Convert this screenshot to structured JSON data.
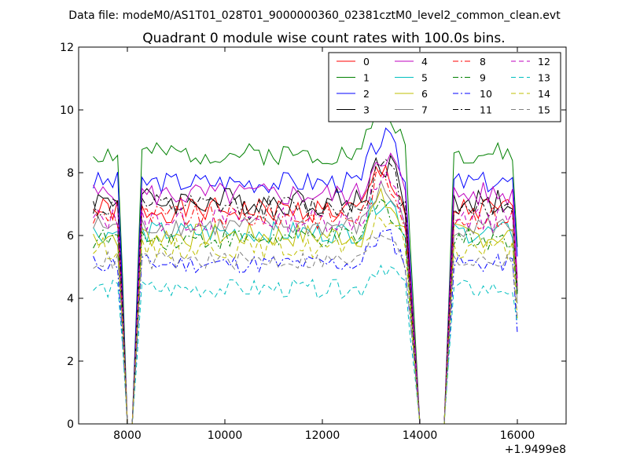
{
  "header": {
    "data_file": "Data file: modeM0/AS1T01_028T01_9000000360_02381cztM0_level2_common_clean.evt"
  },
  "chart_data": {
    "type": "line",
    "title": "Quadrant 0 module wise count rates with 100.0s bins.",
    "xlabel": "",
    "ylabel": "",
    "x_offset_label": "+1.9499e8",
    "xlim": [
      7000,
      17000
    ],
    "ylim": [
      0,
      12
    ],
    "xticks": [
      8000,
      10000,
      12000,
      14000,
      16000
    ],
    "yticks": [
      0,
      2,
      4,
      6,
      8,
      10,
      12
    ],
    "grid": false,
    "legend_position": "top-right",
    "legend_columns": 4,
    "series": [
      {
        "name": "0",
        "color": "#ff0000",
        "dash": "solid",
        "base": 6.8,
        "amp": 0.4,
        "seed": 1
      },
      {
        "name": "1",
        "color": "#008000",
        "dash": "solid",
        "base": 8.6,
        "amp": 0.35,
        "seed": 2
      },
      {
        "name": "2",
        "color": "#0000ff",
        "dash": "solid",
        "base": 7.7,
        "amp": 0.35,
        "seed": 3
      },
      {
        "name": "3",
        "color": "#000000",
        "dash": "solid",
        "base": 7.1,
        "amp": 0.45,
        "seed": 4
      },
      {
        "name": "4",
        "color": "#bf00bf",
        "dash": "solid",
        "base": 7.3,
        "amp": 0.4,
        "seed": 5
      },
      {
        "name": "5",
        "color": "#00bfbf",
        "dash": "solid",
        "base": 6.1,
        "amp": 0.35,
        "seed": 6
      },
      {
        "name": "6",
        "color": "#bfbf00",
        "dash": "solid",
        "base": 6.0,
        "amp": 0.4,
        "seed": 7
      },
      {
        "name": "7",
        "color": "#808080",
        "dash": "solid",
        "base": 6.3,
        "amp": 0.35,
        "seed": 8
      },
      {
        "name": "8",
        "color": "#ff0000",
        "dash": "dashdot",
        "base": 6.6,
        "amp": 0.4,
        "seed": 9
      },
      {
        "name": "9",
        "color": "#008000",
        "dash": "dashdot",
        "base": 5.9,
        "amp": 0.35,
        "seed": 10
      },
      {
        "name": "10",
        "color": "#0000ff",
        "dash": "dashdot",
        "base": 5.1,
        "amp": 0.3,
        "seed": 11
      },
      {
        "name": "11",
        "color": "#000000",
        "dash": "dashdot",
        "base": 6.9,
        "amp": 0.4,
        "seed": 12
      },
      {
        "name": "12",
        "color": "#bf00bf",
        "dash": "dashed",
        "base": 6.5,
        "amp": 0.4,
        "seed": 13
      },
      {
        "name": "13",
        "color": "#00bfbf",
        "dash": "dashed",
        "base": 4.3,
        "amp": 0.3,
        "seed": 14
      },
      {
        "name": "14",
        "color": "#bfbf00",
        "dash": "dashed",
        "base": 5.6,
        "amp": 0.35,
        "seed": 15
      },
      {
        "name": "15",
        "color": "#808080",
        "dash": "dashed",
        "base": 5.2,
        "amp": 0.3,
        "seed": 16
      }
    ]
  }
}
